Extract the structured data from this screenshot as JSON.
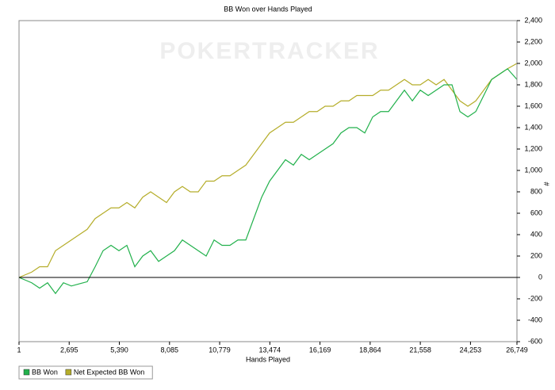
{
  "chart_data": {
    "type": "line",
    "title": "BB Won over Hands Played",
    "watermark": "POKERTRACKER",
    "xlabel": "Hands Played",
    "ylabel": "#",
    "y_axis_side": "right",
    "legend_position": "bottom-left",
    "x": [
      1,
      682,
      1108,
      1534,
      1960,
      2386,
      2812,
      3238,
      3664,
      4090,
      4516,
      4942,
      5368,
      5794,
      6220,
      6646,
      7072,
      7498,
      7924,
      8350,
      8776,
      9202,
      9628,
      10054,
      10480,
      10906,
      11332,
      11758,
      12184,
      12610,
      13036,
      13462,
      13888,
      14314,
      14740,
      15166,
      15592,
      16018,
      16444,
      16870,
      17296,
      17722,
      18148,
      18574,
      19000,
      19426,
      19852,
      20278,
      20704,
      21130,
      21556,
      21982,
      22408,
      22834,
      23260,
      23686,
      24112,
      24538,
      24964,
      25390,
      25816,
      26242,
      26749
    ],
    "series": [
      {
        "name": "BB Won",
        "color": "#22b14c",
        "values": [
          0,
          -50,
          -100,
          -50,
          -150,
          -50,
          -80,
          -60,
          -40,
          100,
          250,
          300,
          250,
          300,
          100,
          200,
          250,
          150,
          200,
          250,
          350,
          300,
          250,
          200,
          350,
          300,
          300,
          350,
          350,
          550,
          750,
          900,
          1000,
          1100,
          1050,
          1150,
          1100,
          1150,
          1200,
          1250,
          1350,
          1400,
          1400,
          1350,
          1500,
          1550,
          1550,
          1650,
          1750,
          1650,
          1750,
          1700,
          1750,
          1800,
          1800,
          1550,
          1500,
          1550,
          1700,
          1850,
          1900,
          1950,
          1850
        ]
      },
      {
        "name": "Net Expected BB Won",
        "color": "#b5ad2a",
        "values": [
          0,
          50,
          100,
          100,
          250,
          300,
          350,
          400,
          450,
          550,
          600,
          650,
          650,
          700,
          650,
          750,
          800,
          750,
          700,
          800,
          850,
          800,
          800,
          900,
          900,
          950,
          950,
          1000,
          1050,
          1150,
          1250,
          1350,
          1400,
          1450,
          1450,
          1500,
          1550,
          1550,
          1600,
          1600,
          1650,
          1650,
          1700,
          1700,
          1700,
          1750,
          1750,
          1800,
          1850,
          1800,
          1800,
          1850,
          1800,
          1850,
          1750,
          1650,
          1600,
          1650,
          1750,
          1850,
          1900,
          1950,
          2000
        ]
      }
    ],
    "xlim": [
      1,
      26749
    ],
    "xticks": [
      1,
      {
        "value": 2695,
        "label": "2,695"
      },
      {
        "value": 5390,
        "label": "5,390"
      },
      {
        "value": 8085,
        "label": "8,085"
      },
      {
        "value": 10779,
        "label": "10,779"
      },
      {
        "value": 13474,
        "label": "13,474"
      },
      {
        "value": 16169,
        "label": "16,169"
      },
      {
        "value": 18864,
        "label": "18,864"
      },
      {
        "value": 21558,
        "label": "21,558"
      },
      {
        "value": 24253,
        "label": "24,253"
      },
      {
        "value": 26749,
        "label": "26,749"
      }
    ],
    "ylim": [
      -600,
      2400
    ],
    "yticks": [
      -600,
      -400,
      -200,
      0,
      200,
      400,
      600,
      800,
      {
        "value": 1000,
        "label": "1,000"
      },
      {
        "value": 1200,
        "label": "1,200"
      },
      {
        "value": 1400,
        "label": "1,400"
      },
      {
        "value": 1600,
        "label": "1,600"
      },
      {
        "value": 1800,
        "label": "1,800"
      },
      {
        "value": 2000,
        "label": "2,000"
      },
      {
        "value": 2200,
        "label": "2,200"
      },
      {
        "value": 2400,
        "label": "2,400"
      }
    ],
    "zero_line": true,
    "grid": false
  }
}
